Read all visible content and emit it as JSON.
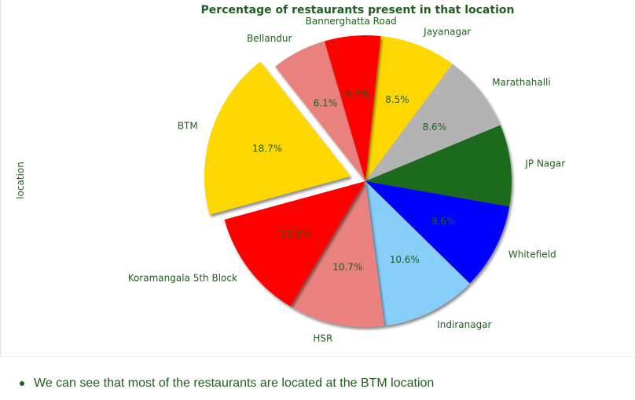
{
  "chart_data": {
    "type": "pie",
    "title": "Percentage of restaurants present in that location",
    "ylabel": "location",
    "slices": [
      {
        "label": "Jayanagar",
        "value": 8.5,
        "pct_label": "8.5%",
        "color": "#ffd700",
        "explode": false
      },
      {
        "label": "Marathahalli",
        "value": 8.6,
        "pct_label": "8.6%",
        "color": "#b3b3b3",
        "explode": false
      },
      {
        "label": "JP Nagar",
        "value": 9.1,
        "pct_label": "",
        "color": "#1e6b1e",
        "explode": false
      },
      {
        "label": "Whitefield",
        "value": 9.6,
        "pct_label": "9.6%",
        "color": "#0000ff",
        "explode": false
      },
      {
        "label": "Indiranagar",
        "value": 10.6,
        "pct_label": "10.6%",
        "color": "#87cefa",
        "explode": false
      },
      {
        "label": "HSR",
        "value": 10.7,
        "pct_label": "10.7%",
        "color": "#e9827f",
        "explode": false
      },
      {
        "label": "Koramangala 5th Block",
        "value": 12.2,
        "pct_label": "12.2%",
        "color": "#ff0000",
        "explode": false
      },
      {
        "label": "BTM",
        "value": 18.7,
        "pct_label": "18.7%",
        "color": "#ffd700",
        "explode": true
      },
      {
        "label": "Bellandur",
        "value": 6.1,
        "pct_label": "6.1%",
        "color": "#e9827f",
        "explode": false
      },
      {
        "label": "Bannerghatta Road",
        "value": 6.2,
        "pct_label": "6.2%",
        "color": "#ff0000",
        "explode": false
      }
    ],
    "start_angle_deg": 84,
    "direction": "clockwise"
  },
  "note": {
    "text": "We can see that most of the restaurants are located at the BTM location"
  }
}
